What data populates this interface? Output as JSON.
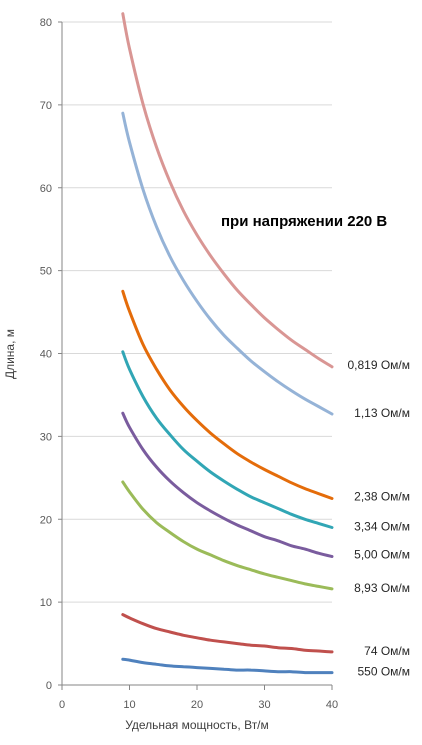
{
  "chart_data": {
    "type": "line",
    "title": "",
    "annotation": "при напряжении 220 В",
    "xlabel": "Удельная мощность, Вт/м",
    "ylabel": "Длина, м",
    "xlim": [
      0,
      40
    ],
    "ylim": [
      0,
      80
    ],
    "x_ticks": [
      0,
      10,
      20,
      30,
      40
    ],
    "y_ticks": [
      0,
      10,
      20,
      30,
      40,
      50,
      60,
      70,
      80
    ],
    "grid": "horizontal",
    "x": [
      9,
      10,
      12,
      14,
      16,
      18,
      20,
      22,
      24,
      26,
      28,
      30,
      32,
      34,
      36,
      38,
      40
    ],
    "series": [
      {
        "name": "0,819 Ом/м",
        "color": "#d99694",
        "values": [
          81.0,
          76.8,
          70.1,
          64.9,
          60.7,
          57.2,
          54.3,
          51.8,
          49.6,
          47.6,
          45.9,
          44.3,
          42.9,
          41.6,
          40.5,
          39.4,
          38.4
        ]
      },
      {
        "name": "1,13 Ом/м",
        "color": "#95b3d7",
        "values": [
          69.0,
          65.5,
          59.8,
          55.3,
          51.7,
          48.8,
          46.3,
          44.1,
          42.2,
          40.6,
          39.1,
          37.8,
          36.6,
          35.5,
          34.5,
          33.6,
          32.7
        ]
      },
      {
        "name": "2,38 Ом/м",
        "color": "#e46c0a",
        "values": [
          47.5,
          45.1,
          41.1,
          38.1,
          35.6,
          33.6,
          31.9,
          30.4,
          29.1,
          27.9,
          26.9,
          26.0,
          25.2,
          24.4,
          23.7,
          23.1,
          22.5
        ]
      },
      {
        "name": "3,34 Ом/м",
        "color": "#31a6b5",
        "values": [
          40.2,
          38.1,
          34.8,
          32.2,
          30.2,
          28.4,
          27.0,
          25.7,
          24.6,
          23.6,
          22.7,
          22.0,
          21.3,
          20.6,
          20.0,
          19.5,
          19.0
        ]
      },
      {
        "name": "5,00 Ом/м",
        "color": "#7a5c9e",
        "values": [
          32.8,
          31.1,
          28.4,
          26.3,
          24.6,
          23.2,
          22.0,
          21.0,
          20.1,
          19.3,
          18.6,
          17.9,
          17.4,
          16.8,
          16.4,
          15.9,
          15.5
        ]
      },
      {
        "name": "8,93 Ом/м",
        "color": "#9bbb59",
        "values": [
          24.5,
          23.3,
          21.2,
          19.6,
          18.4,
          17.3,
          16.4,
          15.7,
          15.0,
          14.4,
          13.9,
          13.4,
          13.0,
          12.6,
          12.2,
          11.9,
          11.6
        ]
      },
      {
        "name": "74 Ом/м",
        "color": "#c0504d",
        "values": [
          8.5,
          8.1,
          7.4,
          6.8,
          6.4,
          6.0,
          5.7,
          5.4,
          5.2,
          5.0,
          4.8,
          4.7,
          4.5,
          4.4,
          4.2,
          4.1,
          4.0
        ]
      },
      {
        "name": "550 Ом/м",
        "color": "#4f81bd",
        "values": [
          3.1,
          3.0,
          2.7,
          2.5,
          2.3,
          2.2,
          2.1,
          2.0,
          1.9,
          1.8,
          1.8,
          1.7,
          1.6,
          1.6,
          1.5,
          1.5,
          1.5
        ]
      }
    ]
  }
}
